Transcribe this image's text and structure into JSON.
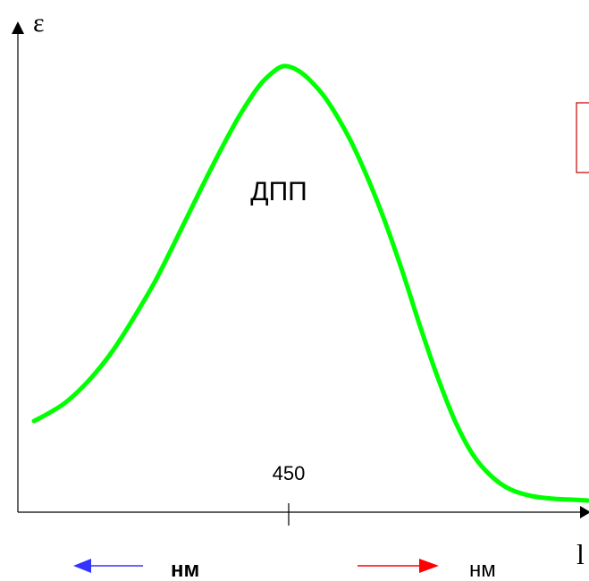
{
  "chart_data": {
    "type": "line",
    "title": "",
    "ylabel": "ε",
    "xlabel": "l",
    "x_ticks": [
      450
    ],
    "x_tick_labels": [
      "450"
    ],
    "series": [
      {
        "label": "ДПП",
        "color": "#00ff00",
        "peak_x": 450
      }
    ],
    "axis_color": "#000000",
    "grid": false
  },
  "legend": {
    "left": {
      "arrow_color": "#3333ff",
      "direction": "left",
      "label": "нм",
      "bold": true
    },
    "right": {
      "arrow_color": "#ff0000",
      "direction": "right",
      "label": "нм",
      "bold": false
    }
  },
  "colors": {
    "box_border": "#cc0000",
    "axis": "#000000",
    "curve": "#00ff00"
  }
}
